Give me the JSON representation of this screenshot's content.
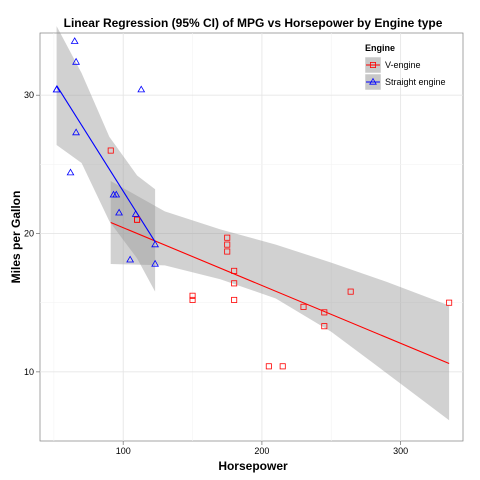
{
  "chart_data": {
    "type": "scatter",
    "title": "Linear Regression (95% CI) of MPG vs Horsepower by Engine type",
    "xlabel": "Horsepower",
    "ylabel": "Miles per Gallon",
    "xlim": [
      40,
      345
    ],
    "ylim": [
      5,
      34.5
    ],
    "xticks": [
      100,
      200,
      300
    ],
    "yticks": [
      10,
      20,
      30
    ],
    "grid": true,
    "legend": {
      "title": "Engine",
      "position": "top-right"
    },
    "series": [
      {
        "name": "V-engine",
        "color": "#ff0000",
        "marker": "square",
        "points": [
          {
            "x": 91,
            "y": 26.0
          },
          {
            "x": 110,
            "y": 21.0
          },
          {
            "x": 110,
            "y": 21.0
          },
          {
            "x": 175,
            "y": 19.7
          },
          {
            "x": 175,
            "y": 19.2
          },
          {
            "x": 175,
            "y": 18.7
          },
          {
            "x": 180,
            "y": 17.3
          },
          {
            "x": 180,
            "y": 16.4
          },
          {
            "x": 180,
            "y": 15.2
          },
          {
            "x": 150,
            "y": 15.5
          },
          {
            "x": 150,
            "y": 15.2
          },
          {
            "x": 264,
            "y": 15.8
          },
          {
            "x": 335,
            "y": 15.0
          },
          {
            "x": 230,
            "y": 14.7
          },
          {
            "x": 245,
            "y": 14.3
          },
          {
            "x": 245,
            "y": 13.3
          },
          {
            "x": 205,
            "y": 10.4
          },
          {
            "x": 215,
            "y": 10.4
          }
        ],
        "fit": {
          "x": [
            91,
            335
          ],
          "y": [
            20.8,
            10.6
          ]
        },
        "ci_upper": {
          "x": [
            91,
            130,
            170,
            210,
            250,
            290,
            335
          ],
          "y": [
            23.8,
            21.6,
            20.3,
            19.2,
            17.9,
            16.5,
            14.8
          ]
        },
        "ci_lower": {
          "x": [
            91,
            130,
            170,
            210,
            250,
            290,
            335
          ],
          "y": [
            17.8,
            17.7,
            16.7,
            15.3,
            12.9,
            9.9,
            6.5
          ]
        }
      },
      {
        "name": "Straight engine",
        "color": "#0000ff",
        "marker": "triangle",
        "points": [
          {
            "x": 93,
            "y": 22.8
          },
          {
            "x": 62,
            "y": 24.4
          },
          {
            "x": 95,
            "y": 22.8
          },
          {
            "x": 66,
            "y": 32.4
          },
          {
            "x": 52,
            "y": 30.4
          },
          {
            "x": 65,
            "y": 33.9
          },
          {
            "x": 97,
            "y": 21.5
          },
          {
            "x": 66,
            "y": 27.3
          },
          {
            "x": 113,
            "y": 30.4
          },
          {
            "x": 109,
            "y": 21.4
          },
          {
            "x": 105,
            "y": 18.1
          },
          {
            "x": 123,
            "y": 17.8
          },
          {
            "x": 123,
            "y": 19.2
          },
          {
            "x": 52,
            "y": 30.4
          }
        ],
        "fit": {
          "x": [
            52,
            123
          ],
          "y": [
            30.7,
            19.4
          ]
        },
        "ci_upper": {
          "x": [
            52,
            70,
            90,
            110,
            123
          ],
          "y": [
            35.0,
            31.6,
            27.0,
            24.2,
            23.2
          ]
        },
        "ci_lower": {
          "x": [
            52,
            70,
            90,
            110,
            123
          ],
          "y": [
            26.4,
            25.1,
            20.9,
            18.2,
            15.8
          ]
        }
      }
    ]
  }
}
